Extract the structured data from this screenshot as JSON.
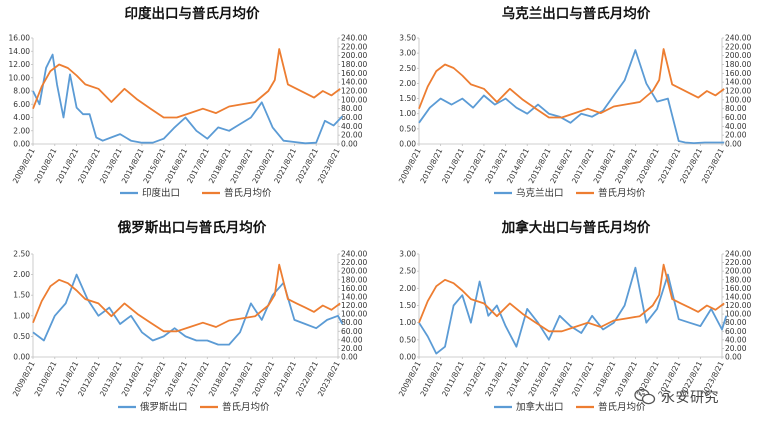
{
  "chart_data": [
    {
      "type": "line",
      "title": "印度出口与普氏月均价",
      "x_tick_labels": [
        "2009/8/21",
        "2010/8/21",
        "2011/8/21",
        "2012/8/21",
        "2013/8/21",
        "2014/8/21",
        "2015/8/21",
        "2016/8/21",
        "2017/8/21",
        "2018/8/21",
        "2019/8/21",
        "2020/8/21",
        "2021/8/21",
        "2022/8/21",
        "2023/8/21"
      ],
      "y_left": {
        "ticks": [
          "0.00",
          "2.00",
          "4.00",
          "6.00",
          "8.00",
          "10.00",
          "12.00",
          "14.00",
          "16.00"
        ],
        "range": [
          0,
          16
        ]
      },
      "y_right": {
        "ticks": [
          "0.00",
          "20.00",
          "40.00",
          "60.00",
          "80.00",
          "100.00",
          "120.00",
          "140.00",
          "160.00",
          "180.00",
          "200.00",
          "220.00",
          "240.00"
        ],
        "range": [
          0,
          240
        ]
      },
      "series": [
        {
          "name": "印度出口",
          "axis": "left",
          "color": "#5b9bd5",
          "x": [
            0,
            0.3,
            0.6,
            0.9,
            1.1,
            1.4,
            1.7,
            2.0,
            2.3,
            2.6,
            2.9,
            3.2,
            3.6,
            4.0,
            4.5,
            5.0,
            5.5,
            6.0,
            6.5,
            7.0,
            7.5,
            8.0,
            8.5,
            9.0,
            9.5,
            10.0,
            10.5,
            11.0,
            11.5,
            12.0,
            12.5,
            13.0,
            13.4,
            13.8,
            14.2
          ],
          "values": [
            8.0,
            6.0,
            11.5,
            13.5,
            9.0,
            4.0,
            10.5,
            5.5,
            4.5,
            4.5,
            1.0,
            0.5,
            1.0,
            1.5,
            0.5,
            0.2,
            0.2,
            0.8,
            2.5,
            4.0,
            2.0,
            0.8,
            2.5,
            2.0,
            3.0,
            4.0,
            6.3,
            2.5,
            0.5,
            0.3,
            0.1,
            0.2,
            3.5,
            2.8,
            4.2
          ]
        },
        {
          "name": "普氏月均价",
          "axis": "right",
          "color": "#ed7d31",
          "x": [
            0,
            0.4,
            0.8,
            1.2,
            1.6,
            2.0,
            2.4,
            3.0,
            3.6,
            4.2,
            4.8,
            5.4,
            6.0,
            6.6,
            7.2,
            7.8,
            8.4,
            9.0,
            9.6,
            10.2,
            10.8,
            11.1,
            11.3,
            11.7,
            12.1,
            12.5,
            12.9,
            13.3,
            13.7,
            14.1
          ],
          "values": [
            80,
            130,
            165,
            180,
            172,
            155,
            135,
            125,
            95,
            125,
            100,
            80,
            60,
            60,
            70,
            80,
            70,
            85,
            90,
            95,
            120,
            145,
            215,
            135,
            125,
            115,
            105,
            120,
            110,
            125
          ]
        }
      ],
      "legend": [
        "印度出口",
        "普氏月均价"
      ]
    },
    {
      "type": "line",
      "title": "乌克兰出口与普氏月均价",
      "x_tick_labels": [
        "2009/8/21",
        "2010/8/21",
        "2011/8/21",
        "2012/8/21",
        "2013/8/21",
        "2014/8/21",
        "2015/8/21",
        "2016/8/21",
        "2017/8/21",
        "2018/8/21",
        "2019/8/21",
        "2020/8/21",
        "2021/8/21",
        "2022/8/21",
        "2023/8/21"
      ],
      "y_left": {
        "ticks": [
          "0.00",
          "0.50",
          "1.00",
          "1.50",
          "2.00",
          "2.50",
          "3.00",
          "3.50"
        ],
        "range": [
          0,
          3.5
        ]
      },
      "y_right": {
        "ticks": [
          "0.00",
          "20.00",
          "40.00",
          "60.00",
          "80.00",
          "100.00",
          "120.00",
          "140.00",
          "160.00",
          "180.00",
          "200.00",
          "220.00",
          "240.00"
        ],
        "range": [
          0,
          240
        ]
      },
      "series": [
        {
          "name": "乌克兰出口",
          "axis": "left",
          "color": "#5b9bd5",
          "x": [
            0,
            0.5,
            1.0,
            1.5,
            2.0,
            2.5,
            3.0,
            3.5,
            4.0,
            4.5,
            5.0,
            5.5,
            6.0,
            6.5,
            7.0,
            7.5,
            8.0,
            8.5,
            9.0,
            9.5,
            10.0,
            10.5,
            11.0,
            11.5,
            12.0,
            12.3,
            12.7,
            13.2,
            13.7,
            14.1
          ],
          "values": [
            0.7,
            1.2,
            1.5,
            1.3,
            1.5,
            1.2,
            1.6,
            1.3,
            1.5,
            1.2,
            1.0,
            1.3,
            1.0,
            0.9,
            0.7,
            1.0,
            0.9,
            1.1,
            1.6,
            2.1,
            3.1,
            2.0,
            1.4,
            1.5,
            0.1,
            0.05,
            0.03,
            0.05,
            0.05,
            0.05
          ]
        },
        {
          "name": "普氏月均价",
          "axis": "right",
          "color": "#ed7d31",
          "x": [
            0,
            0.4,
            0.8,
            1.2,
            1.6,
            2.0,
            2.4,
            3.0,
            3.6,
            4.2,
            4.8,
            5.4,
            6.0,
            6.6,
            7.2,
            7.8,
            8.4,
            9.0,
            9.6,
            10.2,
            10.8,
            11.1,
            11.3,
            11.7,
            12.1,
            12.5,
            12.9,
            13.3,
            13.7,
            14.1
          ],
          "values": [
            80,
            130,
            165,
            180,
            172,
            155,
            135,
            125,
            95,
            125,
            100,
            80,
            60,
            60,
            70,
            80,
            70,
            85,
            90,
            95,
            120,
            145,
            215,
            135,
            125,
            115,
            105,
            120,
            110,
            125
          ]
        }
      ],
      "legend": [
        "乌克兰出口",
        "普氏月均价"
      ]
    },
    {
      "type": "line",
      "title": "俄罗斯出口与普氏月均价",
      "x_tick_labels": [
        "2009/8/21",
        "2010/8/21",
        "2011/8/21",
        "2012/8/21",
        "2013/8/21",
        "2014/8/21",
        "2015/8/21",
        "2016/8/21",
        "2017/8/21",
        "2018/8/21",
        "2019/8/21",
        "2020/8/21",
        "2021/8/21",
        "2022/8/21",
        "2023/8/21"
      ],
      "y_left": {
        "ticks": [
          "0.00",
          "0.50",
          "1.00",
          "1.50",
          "2.00",
          "2.50"
        ],
        "range": [
          0,
          2.5
        ]
      },
      "y_right": {
        "ticks": [
          "0.00",
          "20.00",
          "40.00",
          "60.00",
          "80.00",
          "100.00",
          "120.00",
          "140.00",
          "160.00",
          "180.00",
          "200.00",
          "220.00",
          "240.00"
        ],
        "range": [
          0,
          240
        ]
      },
      "series": [
        {
          "name": "俄罗斯出口",
          "axis": "left",
          "color": "#5b9bd5",
          "x": [
            0,
            0.5,
            1.0,
            1.5,
            2.0,
            2.5,
            3.0,
            3.5,
            4.0,
            4.5,
            5.0,
            5.5,
            6.0,
            6.5,
            7.0,
            7.5,
            8.0,
            8.5,
            9.0,
            9.5,
            10.0,
            10.5,
            11.0,
            11.5,
            12.0,
            12.5,
            13.0,
            13.5,
            14.0,
            14.2
          ],
          "values": [
            0.6,
            0.4,
            1.0,
            1.3,
            2.0,
            1.4,
            1.0,
            1.2,
            0.8,
            1.0,
            0.6,
            0.4,
            0.5,
            0.7,
            0.5,
            0.4,
            0.4,
            0.3,
            0.3,
            0.6,
            1.3,
            0.9,
            1.5,
            1.8,
            0.9,
            0.8,
            0.7,
            0.9,
            1.0,
            0.8
          ]
        },
        {
          "name": "普氏月均价",
          "axis": "right",
          "color": "#ed7d31",
          "x": [
            0,
            0.4,
            0.8,
            1.2,
            1.6,
            2.0,
            2.4,
            3.0,
            3.6,
            4.2,
            4.8,
            5.4,
            6.0,
            6.6,
            7.2,
            7.8,
            8.4,
            9.0,
            9.6,
            10.2,
            10.8,
            11.1,
            11.3,
            11.7,
            12.1,
            12.5,
            12.9,
            13.3,
            13.7,
            14.1
          ],
          "values": [
            80,
            130,
            165,
            180,
            172,
            155,
            135,
            125,
            95,
            125,
            100,
            80,
            60,
            60,
            70,
            80,
            70,
            85,
            90,
            95,
            120,
            145,
            215,
            135,
            125,
            115,
            105,
            120,
            110,
            125
          ]
        }
      ],
      "legend": [
        "俄罗斯出口",
        "普氏月均价"
      ]
    },
    {
      "type": "line",
      "title": "加拿大出口与普氏月均价",
      "x_tick_labels": [
        "2009/8/21",
        "2010/8/21",
        "2011/8/21",
        "2012/8/21",
        "2013/8/21",
        "2014/8/21",
        "2015/8/21",
        "2016/8/21",
        "2017/8/21",
        "2018/8/21",
        "2019/8/21",
        "2020/8/21",
        "2021/8/21",
        "2022/8/21",
        "2023/8/21"
      ],
      "y_left": {
        "ticks": [
          "0.00",
          "0.50",
          "1.00",
          "1.50",
          "2.00",
          "2.50",
          "3.00"
        ],
        "range": [
          0,
          3.0
        ]
      },
      "y_right": {
        "ticks": [
          "0.00",
          "20.00",
          "40.00",
          "60.00",
          "80.00",
          "100.00",
          "120.00",
          "140.00",
          "160.00",
          "180.00",
          "200.00",
          "220.00",
          "240.00"
        ],
        "range": [
          0,
          240
        ]
      },
      "series": [
        {
          "name": "加拿大出口",
          "axis": "left",
          "color": "#5b9bd5",
          "x": [
            0,
            0.4,
            0.8,
            1.2,
            1.6,
            2.0,
            2.4,
            2.8,
            3.2,
            3.6,
            4.0,
            4.5,
            5.0,
            5.5,
            6.0,
            6.5,
            7.0,
            7.5,
            8.0,
            8.5,
            9.0,
            9.5,
            10.0,
            10.5,
            11.0,
            11.5,
            12.0,
            12.5,
            13.0,
            13.5,
            14.0,
            14.2
          ],
          "values": [
            1.0,
            0.6,
            0.1,
            0.3,
            1.5,
            1.8,
            1.0,
            2.2,
            1.2,
            1.5,
            0.9,
            0.3,
            1.4,
            1.0,
            0.5,
            1.2,
            0.9,
            0.7,
            1.2,
            0.8,
            1.0,
            1.5,
            2.6,
            1.0,
            1.4,
            2.4,
            1.1,
            1.0,
            0.9,
            1.4,
            0.8,
            1.2
          ]
        },
        {
          "name": "普氏月均价",
          "axis": "right",
          "color": "#ed7d31",
          "x": [
            0,
            0.4,
            0.8,
            1.2,
            1.6,
            2.0,
            2.4,
            3.0,
            3.6,
            4.2,
            4.8,
            5.4,
            6.0,
            6.6,
            7.2,
            7.8,
            8.4,
            9.0,
            9.6,
            10.2,
            10.8,
            11.1,
            11.3,
            11.7,
            12.1,
            12.5,
            12.9,
            13.3,
            13.7,
            14.1
          ],
          "values": [
            80,
            130,
            165,
            180,
            172,
            155,
            135,
            125,
            95,
            125,
            100,
            80,
            60,
            60,
            70,
            80,
            70,
            85,
            90,
            95,
            120,
            145,
            215,
            135,
            125,
            115,
            105,
            120,
            110,
            125
          ]
        }
      ],
      "legend": [
        "加拿大出口",
        "普氏月均价"
      ]
    }
  ],
  "watermark": {
    "text": "永安研究",
    "icon": "wechat-icon"
  },
  "colors": {
    "export": "#5b9bd5",
    "price": "#ed7d31",
    "axis": "#bfbfbf"
  }
}
